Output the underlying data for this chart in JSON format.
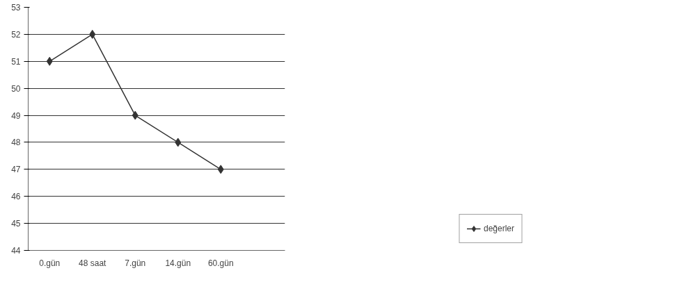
{
  "chart_data": {
    "type": "line",
    "categories": [
      "0.gün",
      "48 saat",
      "7.gün",
      "14.gün",
      "60.gün",
      null
    ],
    "series": [
      {
        "name": "değerler",
        "color": "#333333",
        "values": [
          51,
          52,
          49,
          48,
          47,
          null
        ]
      }
    ],
    "ylim": [
      44,
      53
    ],
    "yticks": [
      44,
      45,
      46,
      47,
      48,
      49,
      50,
      51,
      52,
      53
    ],
    "grid": "y",
    "legend": "bottom right",
    "marker": "diamond",
    "line_style": "solid"
  }
}
